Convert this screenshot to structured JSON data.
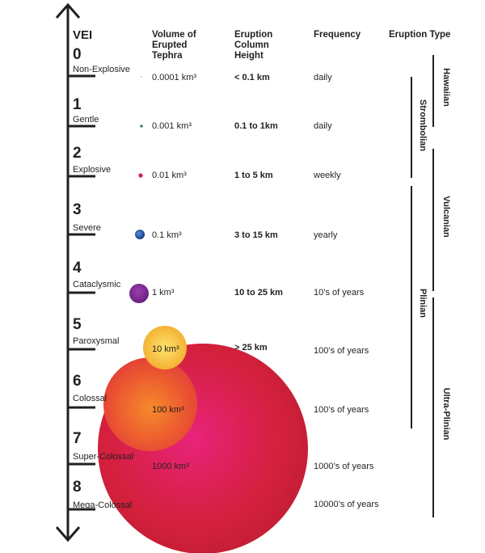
{
  "headers": {
    "vei": "VEI",
    "volume": "Volume of\nErupted\nTephra",
    "column": "Eruption\nColumn\nHeight",
    "frequency": "Frequency",
    "type": "Eruption Type"
  },
  "levels": [
    {
      "num": "0",
      "name": "Non-Explosive",
      "volume": "0.0001 km³",
      "column": "< 0.1 km",
      "frequency": "daily"
    },
    {
      "num": "1",
      "name": "Gentle",
      "volume": "0.001 km³",
      "column": "0.1 to 1km",
      "frequency": "daily"
    },
    {
      "num": "2",
      "name": "Explosive",
      "volume": "0.01 km³",
      "column": "1 to 5 km",
      "frequency": "weekly"
    },
    {
      "num": "3",
      "name": "Severe",
      "volume": "0.1 km³",
      "column": "3 to 15 km",
      "frequency": "yearly"
    },
    {
      "num": "4",
      "name": "Cataclysmic",
      "volume": "1 km³",
      "column": "10 to 25 km",
      "frequency": "10’s of years"
    },
    {
      "num": "5",
      "name": "Paroxysmal",
      "volume": "10 km³",
      "column": "> 25 km",
      "frequency": "100’s of years"
    },
    {
      "num": "6",
      "name": "Colossal",
      "volume": "100 km³",
      "column": "",
      "frequency": "100’s of years"
    },
    {
      "num": "7",
      "name": "Super-Colossal",
      "volume": "1000 km³",
      "column": "",
      "frequency": "1000’s of years"
    },
    {
      "num": "8",
      "name": "Mega-Colossal",
      "volume": "",
      "column": "",
      "frequency": "10000’s of years"
    }
  ],
  "eruption_types": [
    {
      "name": "Hawaiian"
    },
    {
      "name": "Strombolian"
    },
    {
      "name": "Vulcanian"
    },
    {
      "name": "Plinian"
    },
    {
      "name": "Ultra-Plinian"
    }
  ],
  "colors": {
    "axis": "#231f20",
    "vei0_dot": "#e8b84a",
    "vei1_dot": "#2e6b3f",
    "vei2_dot": "#d6204f",
    "vei3_dot": "#1f4fa0",
    "vei4_dot": "#7a2590",
    "vei5_dot": "#f5c842",
    "vei6_dot": "#f06a2a",
    "vei7_dot": "#e0245e"
  }
}
